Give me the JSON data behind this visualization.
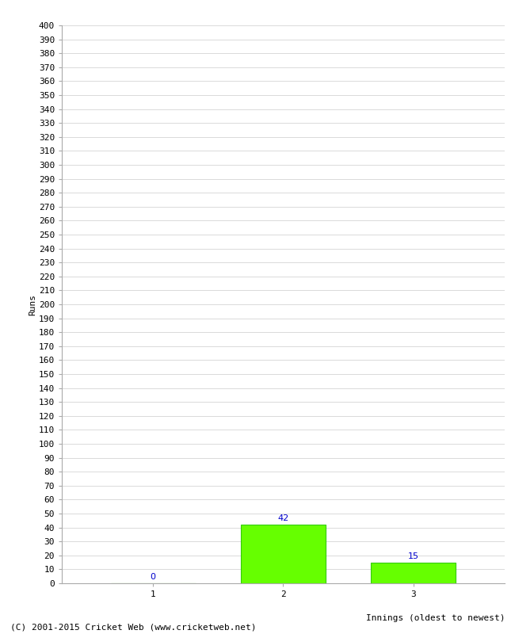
{
  "categories": [
    1,
    2,
    3
  ],
  "values": [
    0,
    42,
    15
  ],
  "bar_color": "#66ff00",
  "bar_edge_color": "#33cc00",
  "value_labels": [
    "0",
    "42",
    "15"
  ],
  "value_label_color": "#0000cc",
  "xlabel": "Innings (oldest to newest)",
  "ylabel": "Runs",
  "ylim": [
    0,
    400
  ],
  "ytick_step": 10,
  "background_color": "#ffffff",
  "grid_color": "#cccccc",
  "footer_text": "(C) 2001-2015 Cricket Web (www.cricketweb.net)",
  "axis_fontsize": 8,
  "label_fontsize": 8,
  "footer_fontsize": 8,
  "bar_width": 0.65
}
